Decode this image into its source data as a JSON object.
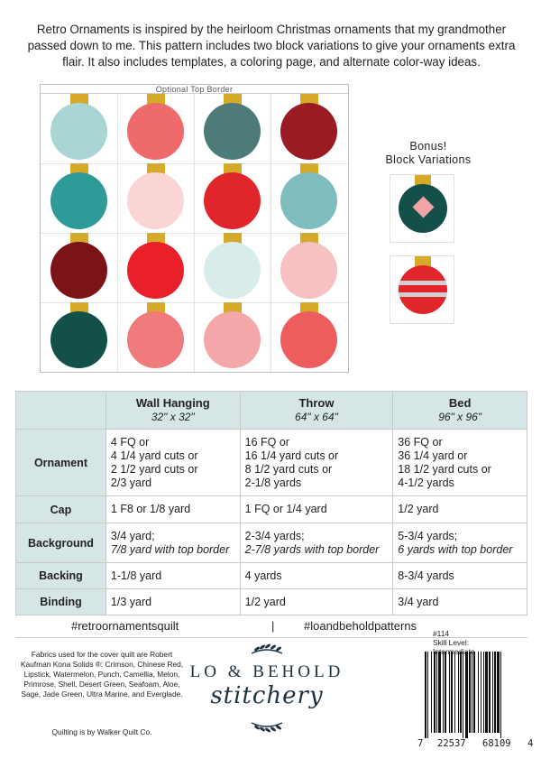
{
  "intro": {
    "text": "Retro Ornaments is inspired by the heirloom Christmas ornaments that my grandmother passed down to me. This pattern includes two block variations to give your ornaments extra flair. It also includes templates, a coloring page, and alternate color-way ideas."
  },
  "quilt": {
    "top_border_label": "Optional Top Border",
    "cap_color": "#d6a928",
    "ornament_colors": [
      [
        "#a7d6d4",
        "#ef6b6b",
        "#4d7b79",
        "#9b1b22"
      ],
      [
        "#2e9b98",
        "#fbd4d5",
        "#e0262a",
        "#7dbdbd"
      ],
      [
        "#7a1418",
        "#e9202a",
        "#d9ecec",
        "#f6c1c2"
      ],
      [
        "#14504a",
        "#ef7b7c",
        "#f4a6a9",
        "#ee5d5e"
      ]
    ]
  },
  "bonus": {
    "title_line1": "Bonus!",
    "title_line2": "Block Variations",
    "variation1_ball_color": "#14504a",
    "variation1_diamond_color": "#f2a3a6",
    "variation2_ball_color": "#e0262a",
    "variation2_stripe_color": "#cfcfcf"
  },
  "table": {
    "columns": [
      {
        "name": "Wall Hanging",
        "size": "32\" x 32\""
      },
      {
        "name": "Throw",
        "size": "64\" x 64\""
      },
      {
        "name": "Bed",
        "size": "96\" x 96\""
      }
    ],
    "rows": [
      {
        "label": "Ornament",
        "cells": [
          [
            "4 FQ or",
            "4  1/4 yard cuts or",
            "2  1/2 yard cuts or",
            "2/3 yard"
          ],
          [
            "16 FQ or",
            "16 1/4 yard cuts or",
            "8   1/2 yard cuts or",
            "2-1/8 yards"
          ],
          [
            "36 FQ or",
            "36  1/4 yard or",
            "18  1/2 yard cuts or",
            "4-1/2 yards"
          ]
        ]
      },
      {
        "label": "Cap",
        "cells": [
          [
            "1 F8 or 1/8 yard"
          ],
          [
            "1 FQ or 1/4 yard"
          ],
          [
            "1/2 yard"
          ]
        ]
      },
      {
        "label": "Background",
        "cells": [
          [
            "3/4 yard;",
            "7/8 yard with top border"
          ],
          [
            "2-3/4 yards;",
            "2-7/8 yards with top border"
          ],
          [
            "5-3/4 yards;",
            "6 yards with top border"
          ]
        ]
      },
      {
        "label": "Backing",
        "cells": [
          [
            "1-1/8 yard"
          ],
          [
            "4 yards"
          ],
          [
            "8-3/4 yards"
          ]
        ]
      },
      {
        "label": "Binding",
        "cells": [
          [
            "1/3 yard"
          ],
          [
            "1/2 yard"
          ],
          [
            "3/4 yard"
          ]
        ]
      }
    ]
  },
  "hashtags": {
    "left": "#retroornamentsquilt",
    "separator": "|",
    "right": "#loandbeholdpatterns"
  },
  "footer": {
    "fabric_note": "Fabrics used for the cover quilt are Robert Kaufman Kona Solids ®: Crimson, Chinese Red, Lipstick, Watermelon, Punch, Camellia, Melon, Primrose, Shell, Desert Green, Seafoam, Aloe, Sage, Jade Green, Ultra Marine, and Everglade.",
    "quilting_note": "Quilting is by Walker Quilt Co.",
    "logo_main": "LO & BEHOLD",
    "logo_script": "stitchery",
    "product_number": "#114",
    "skill_label": "Skill Level:",
    "skill_value": "Intermediate",
    "barcode_digits": [
      "7",
      "22537",
      "68109",
      "4"
    ]
  }
}
